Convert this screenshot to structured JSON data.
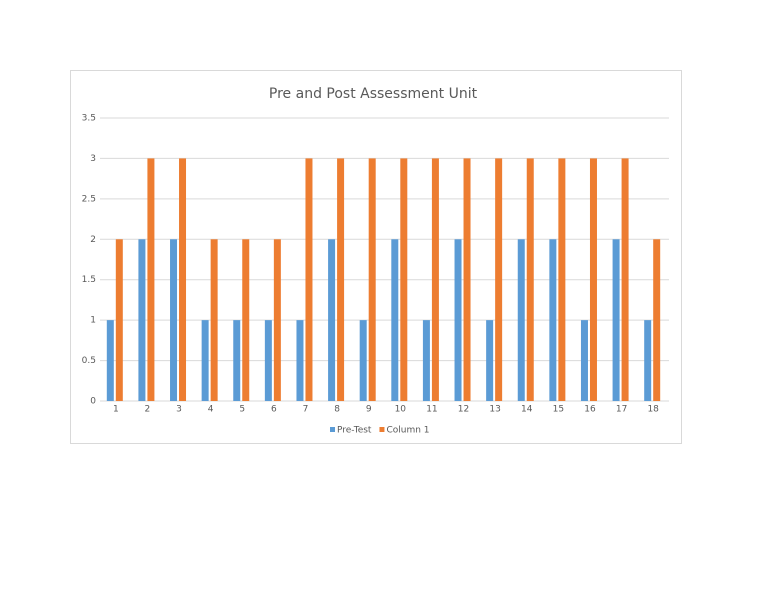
{
  "chart_data": {
    "type": "bar",
    "title": "Pre and Post Assessment Unit",
    "categories": [
      "1",
      "2",
      "3",
      "4",
      "5",
      "6",
      "7",
      "8",
      "9",
      "10",
      "11",
      "12",
      "13",
      "14",
      "15",
      "16",
      "17",
      "18"
    ],
    "series": [
      {
        "name": "Pre-Test",
        "color": "#5b9bd5",
        "values": [
          1,
          2,
          2,
          1,
          1,
          1,
          1,
          2,
          1,
          2,
          1,
          2,
          1,
          2,
          2,
          1,
          2,
          1
        ]
      },
      {
        "name": "Column 1",
        "color": "#ed7d31",
        "values": [
          2,
          3,
          3,
          2,
          2,
          2,
          3,
          3,
          3,
          3,
          3,
          3,
          3,
          3,
          3,
          3,
          3,
          2
        ]
      }
    ],
    "ylim": [
      0,
      3.5
    ],
    "yticks": [
      0,
      0.5,
      1,
      1.5,
      2,
      2.5,
      3,
      3.5
    ],
    "grid": true,
    "legend": "bottom"
  }
}
